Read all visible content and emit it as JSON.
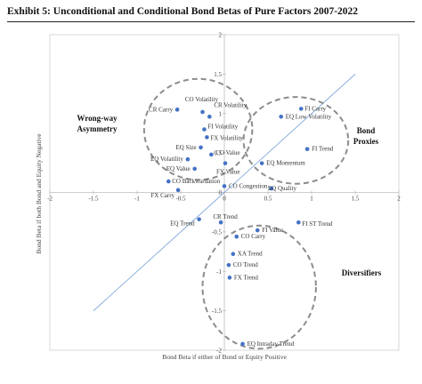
{
  "title": "Exhibit 5: Unconditional and Conditional Bond Betas of Pure Factors 2007-2022",
  "chart_data": {
    "type": "scatter",
    "xlabel": "Bond Beta if either of Bond or Equity Positive",
    "ylabel": "Bond Beta if both Bond and Equity Negative",
    "xlim": [
      -2,
      2
    ],
    "ylim": [
      -2,
      2
    ],
    "xticks": [
      "-2",
      "-1.5",
      "-1",
      "-0.5",
      "0",
      "0.5",
      "1",
      "1.5",
      "2"
    ],
    "yticks": [
      "2",
      "1.5",
      "1",
      "0.5",
      "0",
      "-0.5",
      "-1",
      "-1.5",
      "-2"
    ],
    "diagonal": [
      [
        -1.5,
        -1.5
      ],
      [
        1.5,
        1.5
      ]
    ],
    "regions": [
      {
        "label_lines": [
          "Wrong-way",
          "Asymmetry"
        ],
        "cx": -0.3,
        "cy": 0.8,
        "rx": 0.62,
        "ry": 0.64
      },
      {
        "label_lines": [
          "Bond",
          "Proxies"
        ],
        "cx": 0.82,
        "cy": 0.66,
        "rx": 0.6,
        "ry": 0.55
      },
      {
        "label_lines": [
          "Diversifiers"
        ],
        "cx": 0.4,
        "cy": -1.2,
        "rx": 0.65,
        "ry": 0.78
      }
    ],
    "points": [
      {
        "label": "CO Volatility",
        "x": -0.25,
        "y": 1.02
      },
      {
        "label": "CR Volatility",
        "x": -0.17,
        "y": 0.96
      },
      {
        "label": "CR Carry",
        "x": -0.54,
        "y": 1.05
      },
      {
        "label": "FI Carry",
        "x": 0.88,
        "y": 1.06
      },
      {
        "label": "EQ Low Volatility",
        "x": 0.65,
        "y": 0.96
      },
      {
        "label": "FI Volatility",
        "x": -0.23,
        "y": 0.8
      },
      {
        "label": "FX Volatility",
        "x": -0.2,
        "y": 0.7
      },
      {
        "label": "FI Trend",
        "x": 0.95,
        "y": 0.55
      },
      {
        "label": "EQ Size",
        "x": -0.27,
        "y": 0.57
      },
      {
        "label": "CO Value",
        "x": -0.15,
        "y": 0.48
      },
      {
        "label": "EQ Volatility",
        "x": -0.42,
        "y": 0.42
      },
      {
        "label": "EQ Momentum",
        "x": 0.43,
        "y": 0.37
      },
      {
        "label": "FX Value",
        "x": 0.01,
        "y": 0.37
      },
      {
        "label": "EQ Value",
        "x": -0.34,
        "y": 0.3
      },
      {
        "label": "CO Backwardation",
        "x": -0.64,
        "y": 0.14
      },
      {
        "label": "CO Congestion",
        "x": 0.0,
        "y": 0.08
      },
      {
        "label": "EQ Quality",
        "x": 0.54,
        "y": 0.05
      },
      {
        "label": "FX Carry",
        "x": -0.53,
        "y": 0.03
      },
      {
        "label": "EQ Trend",
        "x": -0.29,
        "y": -0.34
      },
      {
        "label": "CR Trend",
        "x": -0.04,
        "y": -0.38
      },
      {
        "label": "FI ST Trend",
        "x": 0.85,
        "y": -0.38
      },
      {
        "label": "FI Value",
        "x": 0.38,
        "y": -0.48
      },
      {
        "label": "CO Carry",
        "x": 0.14,
        "y": -0.56
      },
      {
        "label": "XA Trend",
        "x": 0.1,
        "y": -0.78
      },
      {
        "label": "CO Trend",
        "x": 0.05,
        "y": -0.92
      },
      {
        "label": "FX Trend",
        "x": 0.06,
        "y": -1.08
      },
      {
        "label": "EQ Intraday Trend",
        "x": 0.21,
        "y": -1.92
      }
    ]
  }
}
